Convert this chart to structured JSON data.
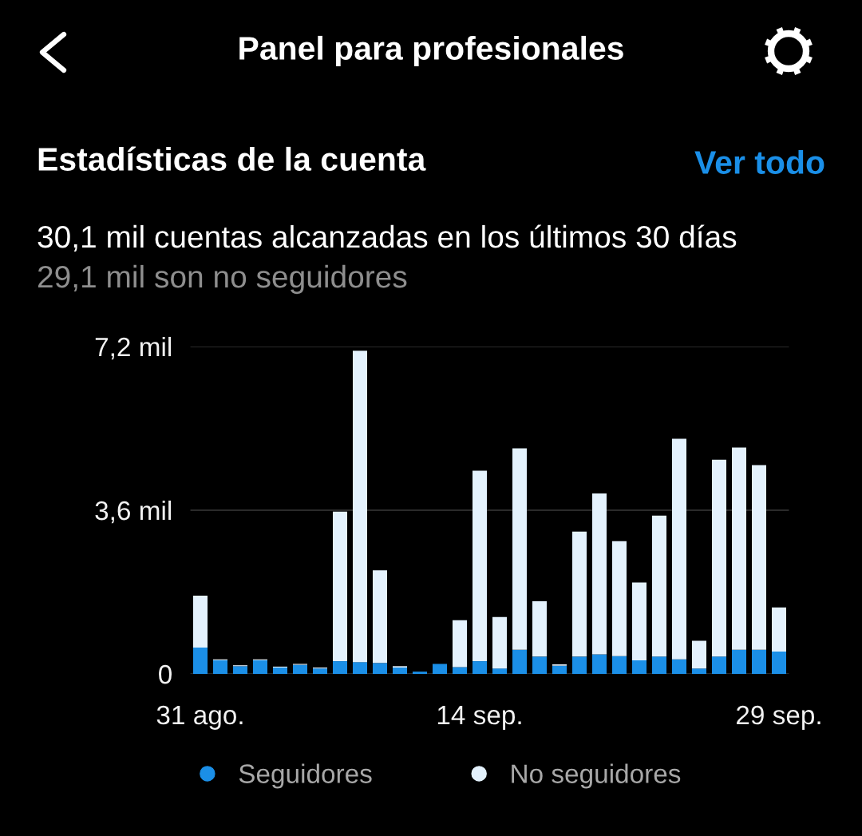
{
  "chart_data": {
    "type": "bar",
    "title": "Panel para profesionales",
    "annotations": [
      "Estadísticas de la cuenta",
      "Ver todo",
      "30,1 mil cuentas alcanzadas en los últimos 30 días",
      "29,1 mil son no seguidores"
    ],
    "categories": [
      "31 ago.",
      null,
      null,
      null,
      null,
      null,
      null,
      null,
      null,
      null,
      null,
      null,
      null,
      null,
      "14 sep.",
      null,
      null,
      null,
      null,
      null,
      null,
      null,
      null,
      null,
      null,
      null,
      null,
      null,
      null,
      "29 sep."
    ],
    "stacked": true,
    "series": [
      {
        "name": "Seguidores",
        "color": "#1b8fe7",
        "values": [
          0.58,
          0.3,
          0.17,
          0.3,
          0.14,
          0.2,
          0.12,
          0.28,
          0.26,
          0.24,
          0.14,
          0.05,
          0.22,
          0.15,
          0.28,
          0.12,
          0.53,
          0.38,
          0.18,
          0.38,
          0.43,
          0.39,
          0.3,
          0.38,
          0.32,
          0.12,
          0.38,
          0.53,
          0.53,
          0.49
        ]
      },
      {
        "name": "No seguidores",
        "color": "#e4f2fd",
        "values": [
          1.14,
          0.02,
          0.02,
          0.02,
          0.02,
          0.02,
          0.02,
          3.29,
          6.85,
          2.04,
          0.03,
          0,
          0,
          1.03,
          4.19,
          1.13,
          4.43,
          1.22,
          0.03,
          2.75,
          3.54,
          2.53,
          1.71,
          3.1,
          4.85,
          0.61,
          4.33,
          4.45,
          4.06,
          0.97
        ]
      }
    ],
    "ylim": [
      0,
      7.2
    ],
    "yticks": [
      0,
      {
        "value": 3.6,
        "label": "3,6 mil"
      },
      {
        "value": 7.2,
        "label": "7,2 mil"
      }
    ],
    "grid": "y",
    "legend": "bottom"
  }
}
